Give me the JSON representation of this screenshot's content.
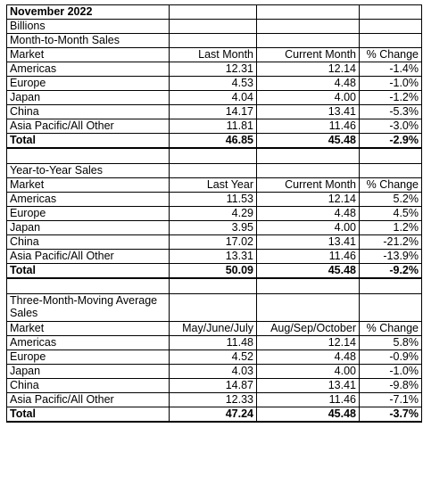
{
  "title": "November 2022",
  "units": "Billions",
  "sections": [
    {
      "heading": "Month-to-Month Sales",
      "columns": [
        "Market",
        "Last Month",
        "Current Month",
        "% Change"
      ],
      "rows": [
        [
          "Americas",
          "12.31",
          "12.14",
          "-1.4%"
        ],
        [
          "Europe",
          "4.53",
          "4.48",
          "-1.0%"
        ],
        [
          "Japan",
          "4.04",
          "4.00",
          "-1.2%"
        ],
        [
          "China",
          "14.17",
          "13.41",
          "-5.3%"
        ],
        [
          "Asia Pacific/All Other",
          "11.81",
          "11.46",
          "-3.0%"
        ]
      ],
      "total": [
        "Total",
        "46.85",
        "45.48",
        "-2.9%"
      ]
    },
    {
      "heading": "Year-to-Year Sales",
      "columns": [
        "Market",
        "Last Year",
        "Current Month",
        "% Change"
      ],
      "rows": [
        [
          "Americas",
          "11.53",
          "12.14",
          "5.2%"
        ],
        [
          "Europe",
          "4.29",
          "4.48",
          "4.5%"
        ],
        [
          "Japan",
          "3.95",
          "4.00",
          "1.2%"
        ],
        [
          "China",
          "17.02",
          "13.41",
          "-21.2%"
        ],
        [
          "Asia Pacific/All Other",
          "13.31",
          "11.46",
          "-13.9%"
        ]
      ],
      "total": [
        "Total",
        "50.09",
        "45.48",
        "-9.2%"
      ]
    },
    {
      "heading": "Three-Month-Moving Average Sales",
      "columns": [
        "Market",
        "May/June/July",
        "Aug/Sep/October",
        "% Change"
      ],
      "rows": [
        [
          "Americas",
          "11.48",
          "12.14",
          "5.8%"
        ],
        [
          "Europe",
          "4.52",
          "4.48",
          "-0.9%"
        ],
        [
          "Japan",
          "4.03",
          "4.00",
          "-1.0%"
        ],
        [
          "China",
          "14.87",
          "13.41",
          "-9.8%"
        ],
        [
          "Asia Pacific/All Other",
          "12.33",
          "11.46",
          "-7.1%"
        ]
      ],
      "total": [
        "Total",
        "47.24",
        "45.48",
        "-3.7%"
      ]
    }
  ]
}
